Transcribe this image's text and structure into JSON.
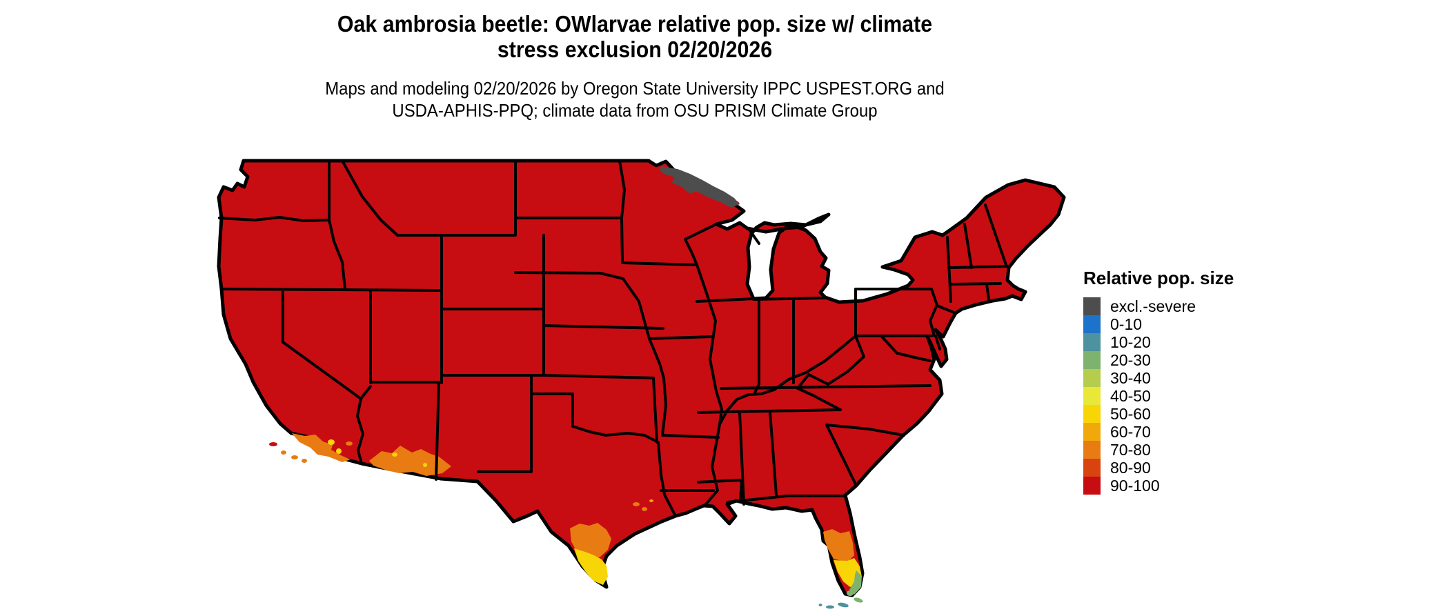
{
  "title": {
    "line1": "Oak ambrosia beetle: OWlarvae relative pop. size w/ climate",
    "line2": "stress exclusion 02/20/2026"
  },
  "subtitle": {
    "line1": "Maps and modeling 02/20/2026 by Oregon State University IPPC USPEST.ORG and",
    "line2": "USDA-APHIS-PPQ; climate data from OSU PRISM Climate Group"
  },
  "legend": {
    "title": "Relative pop. size",
    "items": [
      {
        "label": "excl.-severe",
        "color": "#4d4d4d"
      },
      {
        "label": "0-10",
        "color": "#1d72c9"
      },
      {
        "label": "10-20",
        "color": "#4d929e"
      },
      {
        "label": "20-30",
        "color": "#7db36f"
      },
      {
        "label": "30-40",
        "color": "#b5cc4c"
      },
      {
        "label": "40-50",
        "color": "#e9e838"
      },
      {
        "label": "50-60",
        "color": "#f7d506"
      },
      {
        "label": "60-70",
        "color": "#f0a80a"
      },
      {
        "label": "70-80",
        "color": "#e87c12"
      },
      {
        "label": "80-90",
        "color": "#d84310"
      },
      {
        "label": "90-100",
        "color": "#c80d12"
      }
    ]
  },
  "palette": {
    "excl_severe": "#4d4d4d",
    "b0_10": "#1d72c9",
    "b10_20": "#4d929e",
    "b20_30": "#7db36f",
    "b30_40": "#b5cc4c",
    "b40_50": "#e9e838",
    "b50_60": "#f7d506",
    "b60_70": "#f0a80a",
    "b70_80": "#e87c12",
    "b80_90": "#d84310",
    "b90_100": "#c80d12",
    "border": "#000000",
    "water": "#ffffff"
  },
  "map": {
    "type": "choropleth",
    "extent": "conterminous United States with state borders",
    "regions": [
      {
        "area": "most of conterminous US",
        "value": "90-100"
      },
      {
        "area": "northeastern Minnesota (arrowhead)",
        "value": "excl.-severe"
      },
      {
        "area": "southern California coast",
        "value": "70-80 with 50-60 patches"
      },
      {
        "area": "southwestern Arizona",
        "value": "70-80 with 50-60 specks"
      },
      {
        "area": "south Texas (Rio Grande Valley)",
        "value": "70-80 grading to 40-60 at tip"
      },
      {
        "area": "Texas gulf coast near Houston",
        "value": "70-80 specks"
      },
      {
        "area": "central Florida peninsula",
        "value": "70-80"
      },
      {
        "area": "south-central Florida",
        "value": "50-60"
      },
      {
        "area": "southeast Florida tip",
        "value": "20-30"
      },
      {
        "area": "Florida Keys",
        "value": "10-20"
      }
    ]
  }
}
